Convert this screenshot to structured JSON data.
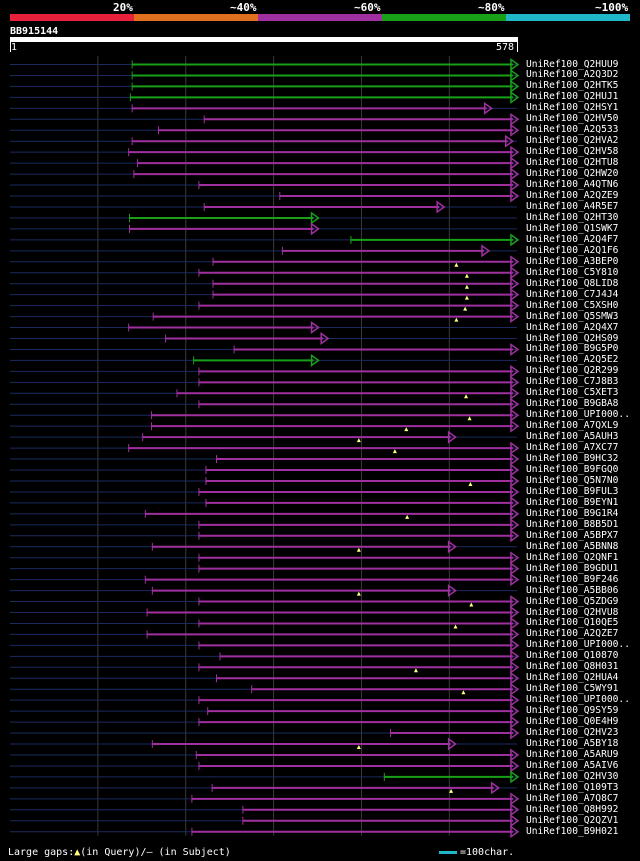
{
  "query": {
    "name": "BB915144",
    "start": "1",
    "end": "578",
    "length": 578
  },
  "legend": {
    "segments": [
      {
        "label": "20%",
        "color": "#e8203c"
      },
      {
        "label": "~40%",
        "color": "#e07020"
      },
      {
        "label": "~60%",
        "color": "#a030a0"
      },
      {
        "label": "~80%",
        "color": "#18a018"
      },
      {
        "label": "~100%",
        "color": "#20b8c8"
      }
    ]
  },
  "colors": {
    "magenta": "#a030a0",
    "green": "#18a018",
    "gap_marker": "#ffff80",
    "background": "#000000",
    "row_line": "#1c2a60"
  },
  "footer": {
    "gaps_prefix": "Large gaps:",
    "gap_triangle": "▲",
    "gaps_suffix": "(in Query)/– (in Subject)",
    "scale_label": "=100char."
  },
  "hits": [
    {
      "label": "UniRef100_Q2HUU9",
      "start": 140,
      "end": 578,
      "color": "green",
      "gap": null
    },
    {
      "label": "UniRef100_A2Q3D2",
      "start": 140,
      "end": 578,
      "color": "green",
      "gap": null
    },
    {
      "label": "UniRef100_Q2HTK5",
      "start": 140,
      "end": 578,
      "color": "green",
      "gap": null
    },
    {
      "label": "UniRef100_Q2HUJ1",
      "start": 138,
      "end": 578,
      "color": "green",
      "gap": null
    },
    {
      "label": "UniRef100_Q2HSY1",
      "start": 140,
      "end": 548,
      "color": "magenta",
      "gap": null
    },
    {
      "label": "UniRef100_Q2HV50",
      "start": 222,
      "end": 578,
      "color": "magenta",
      "gap": null
    },
    {
      "label": "UniRef100_A2Q533",
      "start": 170,
      "end": 578,
      "color": "magenta",
      "gap": null
    },
    {
      "label": "UniRef100_Q2HVA2",
      "start": 140,
      "end": 572,
      "color": "magenta",
      "gap": null
    },
    {
      "label": "UniRef100_Q2HV58",
      "start": 136,
      "end": 578,
      "color": "magenta",
      "gap": null
    },
    {
      "label": "UniRef100_Q2HTU8",
      "start": 146,
      "end": 578,
      "color": "magenta",
      "gap": null
    },
    {
      "label": "UniRef100_Q2HW20",
      "start": 142,
      "end": 578,
      "color": "magenta",
      "gap": null
    },
    {
      "label": "UniRef100_A4QTN6",
      "start": 216,
      "end": 578,
      "color": "magenta",
      "gap": null
    },
    {
      "label": "UniRef100_A2QZE9",
      "start": 308,
      "end": 578,
      "color": "magenta",
      "gap": null
    },
    {
      "label": "UniRef100_A4R5E7",
      "start": 222,
      "end": 494,
      "color": "magenta",
      "gap": null
    },
    {
      "label": "UniRef100_Q2HT30",
      "start": 137,
      "end": 351,
      "color": "green",
      "gap": null
    },
    {
      "label": "UniRef100_Q1SWK7",
      "start": 137,
      "end": 351,
      "color": "magenta",
      "gap": null
    },
    {
      "label": "UniRef100_A2Q4F7",
      "start": 389,
      "end": 578,
      "color": "green",
      "gap": null
    },
    {
      "label": "UniRef100_A2Q1F6",
      "start": 311,
      "end": 545,
      "color": "magenta",
      "gap": null
    },
    {
      "label": "UniRef100_A3BEP0",
      "start": 232,
      "end": 578,
      "color": "magenta",
      "gap": 509
    },
    {
      "label": "UniRef100_C5Y810",
      "start": 216,
      "end": 578,
      "color": "magenta",
      "gap": 521
    },
    {
      "label": "UniRef100_Q8LID8",
      "start": 232,
      "end": 578,
      "color": "magenta",
      "gap": 521
    },
    {
      "label": "UniRef100_C7J4J4",
      "start": 232,
      "end": 578,
      "color": "magenta",
      "gap": 521
    },
    {
      "label": "UniRef100_C5XSH0",
      "start": 216,
      "end": 578,
      "color": "magenta",
      "gap": 519
    },
    {
      "label": "UniRef100_Q5SMW3",
      "start": 164,
      "end": 578,
      "color": "magenta",
      "gap": 509
    },
    {
      "label": "UniRef100_A2Q4X7",
      "start": 136,
      "end": 351,
      "color": "magenta",
      "gap": null
    },
    {
      "label": "UniRef100_Q2HS09",
      "start": 178,
      "end": 362,
      "color": "magenta",
      "gap": null
    },
    {
      "label": "UniRef100_B9G5P0",
      "start": 256,
      "end": 578,
      "color": "magenta",
      "gap": null
    },
    {
      "label": "UniRef100_A2Q5E2",
      "start": 210,
      "end": 351,
      "color": "green",
      "gap": null
    },
    {
      "label": "UniRef100_Q2R299",
      "start": 216,
      "end": 578,
      "color": "magenta",
      "gap": null
    },
    {
      "label": "UniRef100_C7J8B3",
      "start": 216,
      "end": 578,
      "color": "magenta",
      "gap": null
    },
    {
      "label": "UniRef100_C5XET3",
      "start": 191,
      "end": 578,
      "color": "magenta",
      "gap": 520
    },
    {
      "label": "UniRef100_B9GBA8",
      "start": 216,
      "end": 578,
      "color": "magenta",
      "gap": null
    },
    {
      "label": "UniRef100_UPI000..",
      "start": 162,
      "end": 578,
      "color": "magenta",
      "gap": 524
    },
    {
      "label": "UniRef100_A7QXL9",
      "start": 162,
      "end": 578,
      "color": "magenta",
      "gap": 452
    },
    {
      "label": "UniRef100_A5AUH3",
      "start": 152,
      "end": 507,
      "color": "magenta",
      "gap": 398
    },
    {
      "label": "UniRef100_A7XC77",
      "start": 136,
      "end": 578,
      "color": "magenta",
      "gap": 439
    },
    {
      "label": "UniRef100_B9HC32",
      "start": 236,
      "end": 578,
      "color": "magenta",
      "gap": null
    },
    {
      "label": "UniRef100_B9FGQ0",
      "start": 224,
      "end": 578,
      "color": "magenta",
      "gap": null
    },
    {
      "label": "UniRef100_Q5N7N0",
      "start": 224,
      "end": 578,
      "color": "magenta",
      "gap": 525
    },
    {
      "label": "UniRef100_B9FUL3",
      "start": 216,
      "end": 578,
      "color": "magenta",
      "gap": null
    },
    {
      "label": "UniRef100_B9EYN1",
      "start": 224,
      "end": 578,
      "color": "magenta",
      "gap": null
    },
    {
      "label": "UniRef100_B9G1R4",
      "start": 155,
      "end": 578,
      "color": "magenta",
      "gap": 453
    },
    {
      "label": "UniRef100_B8B5D1",
      "start": 216,
      "end": 578,
      "color": "magenta",
      "gap": null
    },
    {
      "label": "UniRef100_A5BPX7",
      "start": 216,
      "end": 578,
      "color": "magenta",
      "gap": null
    },
    {
      "label": "UniRef100_A5BNN8",
      "start": 163,
      "end": 507,
      "color": "magenta",
      "gap": 398
    },
    {
      "label": "UniRef100_Q2QNF1",
      "start": 216,
      "end": 578,
      "color": "magenta",
      "gap": null
    },
    {
      "label": "UniRef100_B9GDU1",
      "start": 216,
      "end": 578,
      "color": "magenta",
      "gap": null
    },
    {
      "label": "UniRef100_B9F246",
      "start": 155,
      "end": 578,
      "color": "magenta",
      "gap": null
    },
    {
      "label": "UniRef100_A5BB06",
      "start": 163,
      "end": 507,
      "color": "magenta",
      "gap": 398
    },
    {
      "label": "UniRef100_Q5ZDG9",
      "start": 216,
      "end": 578,
      "color": "magenta",
      "gap": 526
    },
    {
      "label": "UniRef100_Q2HVU8",
      "start": 157,
      "end": 578,
      "color": "magenta",
      "gap": null
    },
    {
      "label": "UniRef100_Q10QE5",
      "start": 216,
      "end": 578,
      "color": "magenta",
      "gap": 508
    },
    {
      "label": "UniRef100_A2QZE7",
      "start": 157,
      "end": 578,
      "color": "magenta",
      "gap": null
    },
    {
      "label": "UniRef100_UPI000..",
      "start": 216,
      "end": 578,
      "color": "magenta",
      "gap": null
    },
    {
      "label": "UniRef100_Q10870",
      "start": 240,
      "end": 578,
      "color": "magenta",
      "gap": null
    },
    {
      "label": "UniRef100_Q8H031",
      "start": 216,
      "end": 578,
      "color": "magenta",
      "gap": 463
    },
    {
      "label": "UniRef100_Q2HUA4",
      "start": 236,
      "end": 578,
      "color": "magenta",
      "gap": null
    },
    {
      "label": "UniRef100_C5WY91",
      "start": 276,
      "end": 578,
      "color": "magenta",
      "gap": 517
    },
    {
      "label": "UniRef100_UPI000..",
      "start": 216,
      "end": 578,
      "color": "magenta",
      "gap": null
    },
    {
      "label": "UniRef100_Q9SY59",
      "start": 226,
      "end": 578,
      "color": "magenta",
      "gap": null
    },
    {
      "label": "UniRef100_Q0E4H9",
      "start": 216,
      "end": 578,
      "color": "magenta",
      "gap": null
    },
    {
      "label": "UniRef100_Q2HV23",
      "start": 434,
      "end": 578,
      "color": "magenta",
      "gap": null
    },
    {
      "label": "UniRef100_A5BY18",
      "start": 163,
      "end": 507,
      "color": "magenta",
      "gap": 398
    },
    {
      "label": "UniRef100_A5ARU9",
      "start": 213,
      "end": 578,
      "color": "magenta",
      "gap": null
    },
    {
      "label": "UniRef100_A5AIV6",
      "start": 216,
      "end": 578,
      "color": "magenta",
      "gap": null
    },
    {
      "label": "UniRef100_Q2HV30",
      "start": 427,
      "end": 578,
      "color": "green",
      "gap": null
    },
    {
      "label": "UniRef100_Q109T3",
      "start": 231,
      "end": 556,
      "color": "magenta",
      "gap": 503
    },
    {
      "label": "UniRef100_A7Q8C7",
      "start": 208,
      "end": 578,
      "color": "magenta",
      "gap": null
    },
    {
      "label": "UniRef100_Q8H992",
      "start": 266,
      "end": 578,
      "color": "magenta",
      "gap": null
    },
    {
      "label": "UniRef100_Q2QZV1",
      "start": 266,
      "end": 578,
      "color": "magenta",
      "gap": null
    },
    {
      "label": "UniRef100_B9H021",
      "start": 208,
      "end": 578,
      "color": "magenta",
      "gap": null
    }
  ]
}
